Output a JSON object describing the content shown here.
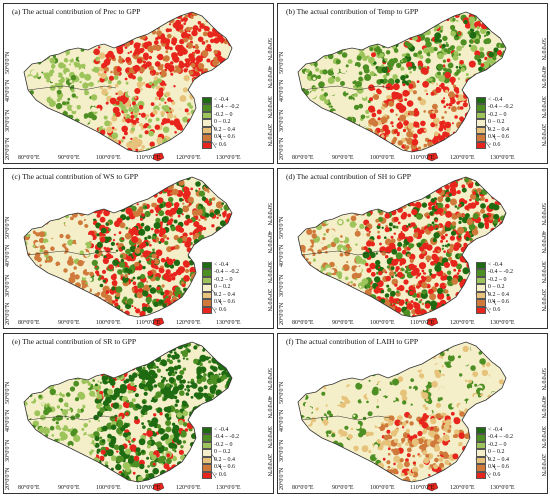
{
  "panels": [
    {
      "id": "a",
      "title": "(a) The actual contribution of Prec to GPP",
      "palette": "red-north"
    },
    {
      "id": "b",
      "title": "(b) The actual contribution of Temp to GPP",
      "palette": "south-red"
    },
    {
      "id": "c",
      "title": "(c) The actual contribution of WS to GPP",
      "palette": "mixed-red"
    },
    {
      "id": "d",
      "title": "(d) The actual contribution of SH to GPP",
      "palette": "mixed-red"
    },
    {
      "id": "e",
      "title": "(e) The actual contribution of SR to GPP",
      "palette": "green-east"
    },
    {
      "id": "f",
      "title": "(f) The actual contribution of LAIH to GPP",
      "palette": "pale"
    }
  ],
  "legend": [
    {
      "label": "< -0.4",
      "color": "#1f6b12"
    },
    {
      "label": "-0.4 – -0.2",
      "color": "#4d8f23"
    },
    {
      "label": "-0.2 – 0",
      "color": "#9cc45a"
    },
    {
      "label": "0 – 0.2",
      "color": "#f4efc8"
    },
    {
      "label": "0.2 – 0.4",
      "color": "#e6c27a"
    },
    {
      "label": "0.4 – 0.6",
      "color": "#cf7a3a"
    },
    {
      "label": "> 0.6",
      "color": "#e8251c"
    }
  ],
  "axes": {
    "x_ticks": [
      "80°0'0\"E",
      "90°0'0\"E",
      "100°0'0\"E",
      "110°0'0\"E",
      "120°0'0\"E",
      "130°0'0\"E"
    ],
    "y_ticks": [
      "50°0'0\"N",
      "40°0'0\"N",
      "30°0'0\"N",
      "20°0'0\"N"
    ]
  }
}
